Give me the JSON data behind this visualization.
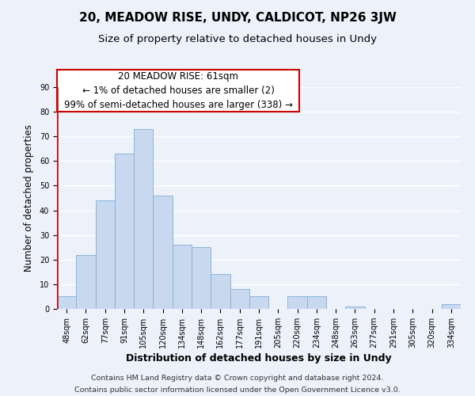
{
  "title": "20, MEADOW RISE, UNDY, CALDICOT, NP26 3JW",
  "subtitle": "Size of property relative to detached houses in Undy",
  "xlabel": "Distribution of detached houses by size in Undy",
  "ylabel": "Number of detached properties",
  "categories": [
    "48sqm",
    "62sqm",
    "77sqm",
    "91sqm",
    "105sqm",
    "120sqm",
    "134sqm",
    "148sqm",
    "162sqm",
    "177sqm",
    "191sqm",
    "205sqm",
    "220sqm",
    "234sqm",
    "248sqm",
    "263sqm",
    "277sqm",
    "291sqm",
    "305sqm",
    "320sqm",
    "334sqm"
  ],
  "values": [
    5,
    22,
    44,
    63,
    73,
    46,
    26,
    25,
    14,
    8,
    5,
    0,
    5,
    5,
    0,
    1,
    0,
    0,
    0,
    0,
    2
  ],
  "bar_color": "#c8d9ef",
  "bar_edge_color": "#8ab4de",
  "annotation_line1": "20 MEADOW RISE: 61sqm",
  "annotation_line2": "← 1% of detached houses are smaller (2)",
  "annotation_line3": "99% of semi-detached houses are larger (338) →",
  "ylim": [
    0,
    90
  ],
  "yticks": [
    0,
    10,
    20,
    30,
    40,
    50,
    60,
    70,
    80,
    90
  ],
  "footer_line1": "Contains HM Land Registry data © Crown copyright and database right 2024.",
  "footer_line2": "Contains public sector information licensed under the Open Government Licence v3.0.",
  "background_color": "#edf1f9",
  "grid_color": "#ffffff",
  "red_line_color": "#cc0000",
  "title_fontsize": 11,
  "subtitle_fontsize": 9.5,
  "xlabel_fontsize": 9,
  "ylabel_fontsize": 8.5,
  "tick_fontsize": 7,
  "annotation_fontsize": 8.5,
  "footer_fontsize": 6.8
}
